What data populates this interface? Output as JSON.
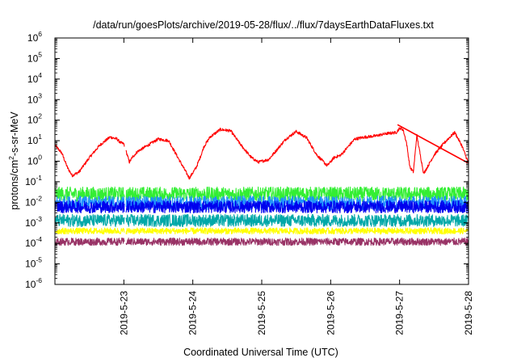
{
  "chart_data": {
    "type": "line",
    "title": "/data/run/goesPlots/archive/2019-05-28/flux/../flux/7daysEarthDataFluxes.txt",
    "xlabel": "Coordinated Universal Time (UTC)",
    "ylabel": {
      "base": "protons/cm",
      "sup": "2",
      "rest": "-s-sr-MeV"
    },
    "yscale": "log",
    "ylim": [
      1e-06,
      1000000.0
    ],
    "xlim": [
      "2019-05-22",
      "2019-05-28"
    ],
    "x_ticks": [
      "2019-5-23",
      "2019-5-24",
      "2019-5-25",
      "2019-5-26",
      "2019-5-27",
      "2019-5-28"
    ],
    "y_ticks": [
      {
        "base": "10",
        "exp": "-6"
      },
      {
        "base": "10",
        "exp": "-5"
      },
      {
        "base": "10",
        "exp": "-4"
      },
      {
        "base": "10",
        "exp": "-3"
      },
      {
        "base": "10",
        "exp": "-2"
      },
      {
        "base": "10",
        "exp": "-1"
      },
      {
        "base": "10",
        "exp": "0"
      },
      {
        "base": "10",
        "exp": "1"
      },
      {
        "base": "10",
        "exp": "2"
      },
      {
        "base": "10",
        "exp": "3"
      },
      {
        "base": "10",
        "exp": "4"
      },
      {
        "base": "10",
        "exp": "5"
      },
      {
        "base": "10",
        "exp": "6"
      }
    ],
    "grid": false,
    "series": [
      {
        "color": "#ff0000",
        "noise": 0.07,
        "x": [
          0.0,
          0.1,
          0.18,
          0.25,
          0.35,
          0.5,
          0.65,
          0.8,
          0.9,
          0.95,
          1.0,
          1.08,
          1.12,
          1.2,
          1.35,
          1.5,
          1.65,
          1.8,
          1.95,
          2.05,
          2.12,
          2.16,
          2.25,
          2.4,
          2.55,
          2.7,
          2.85,
          2.95,
          3.0,
          3.1,
          3.2,
          3.35,
          3.5,
          3.65,
          3.8,
          3.95,
          4.05,
          4.15,
          4.25,
          4.35,
          4.5,
          4.65,
          4.8,
          4.95,
          5.0,
          5.05,
          5.1,
          5.15,
          5.2,
          5.25,
          5.3,
          5.35,
          5.4,
          5.5,
          5.6,
          5.7,
          5.8,
          5.9,
          6.0
        ],
        "y": [
          6,
          2.5,
          0.5,
          0.2,
          0.3,
          1.5,
          6,
          15,
          12,
          8,
          7,
          0.9,
          1.5,
          3,
          6,
          12,
          10,
          1.2,
          0.15,
          0.5,
          2,
          5,
          15,
          35,
          30,
          6,
          1.5,
          0.9,
          1,
          1.2,
          3,
          12,
          28,
          14,
          2,
          0.6,
          1.5,
          2,
          5,
          12,
          15,
          17,
          22,
          25,
          40,
          35,
          8,
          0.5,
          0.3,
          18,
          2,
          0.25,
          0.5,
          2,
          5,
          12,
          25,
          6,
          0.8
        ]
      },
      {
        "color": "#ff0000",
        "noise": 0,
        "x": [
          4.97,
          6.0
        ],
        "y": [
          60,
          0.8
        ]
      },
      {
        "color": "#33ee33",
        "noise": 0.35,
        "x": [
          0,
          6
        ],
        "y": [
          0.025,
          0.025
        ]
      },
      {
        "color": "#1e90ff",
        "noise": 0.35,
        "x": [
          0,
          6
        ],
        "y": [
          0.009,
          0.009
        ]
      },
      {
        "color": "#0000ee",
        "noise": 0.3,
        "x": [
          0,
          6
        ],
        "y": [
          0.006,
          0.006
        ]
      },
      {
        "color": "#00a8a8",
        "noise": 0.3,
        "x": [
          0,
          6
        ],
        "y": [
          0.0013,
          0.0013
        ]
      },
      {
        "color": "#ffff00",
        "noise": 0.15,
        "x": [
          0,
          6
        ],
        "y": [
          0.0004,
          0.0004
        ]
      },
      {
        "color": "#993366",
        "noise": 0.18,
        "x": [
          0,
          6
        ],
        "y": [
          0.00012,
          0.00012
        ]
      }
    ],
    "data_gap_x": 1.02
  }
}
